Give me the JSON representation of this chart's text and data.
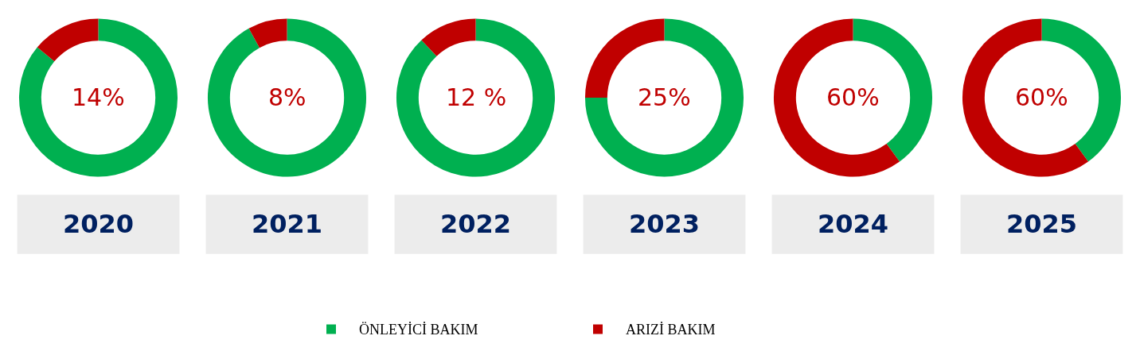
{
  "chart_data": [
    {
      "type": "donut",
      "title": "2020",
      "categories": [
        "ÖNLEYİCİ BAKIM",
        "ARIZİ BAKIM"
      ],
      "values": [
        86,
        14
      ],
      "colors": [
        "#00b050",
        "#c00000"
      ],
      "annotations": [
        "14%"
      ],
      "legend": "bottom"
    },
    {
      "type": "donut",
      "title": "2021",
      "categories": [
        null,
        null
      ],
      "values": [
        92,
        8
      ],
      "colors": [
        "#00b050",
        "#c00000"
      ],
      "annotations": [
        "8%"
      ]
    },
    {
      "type": "donut",
      "title": "2022",
      "categories": [
        null,
        null
      ],
      "values": [
        88,
        12
      ],
      "colors": [
        "#00b050",
        "#c00000"
      ],
      "annotations": [
        "12 %"
      ]
    },
    {
      "type": "donut",
      "title": "2023",
      "categories": [
        null,
        null
      ],
      "values": [
        75,
        25
      ],
      "colors": [
        "#00b050",
        "#c00000"
      ],
      "annotations": [
        "25%"
      ]
    },
    {
      "type": "donut",
      "title": "2024",
      "categories": [
        null,
        null
      ],
      "values": [
        40,
        60
      ],
      "colors": [
        "#00b050",
        "#c00000"
      ],
      "annotations": [
        "60%"
      ]
    },
    {
      "type": "donut",
      "title": "2025",
      "categories": [
        null,
        null
      ],
      "values": [
        40,
        60
      ],
      "colors": [
        "#00b050",
        "#c00000"
      ],
      "annotations": [
        "60%"
      ]
    }
  ]
}
